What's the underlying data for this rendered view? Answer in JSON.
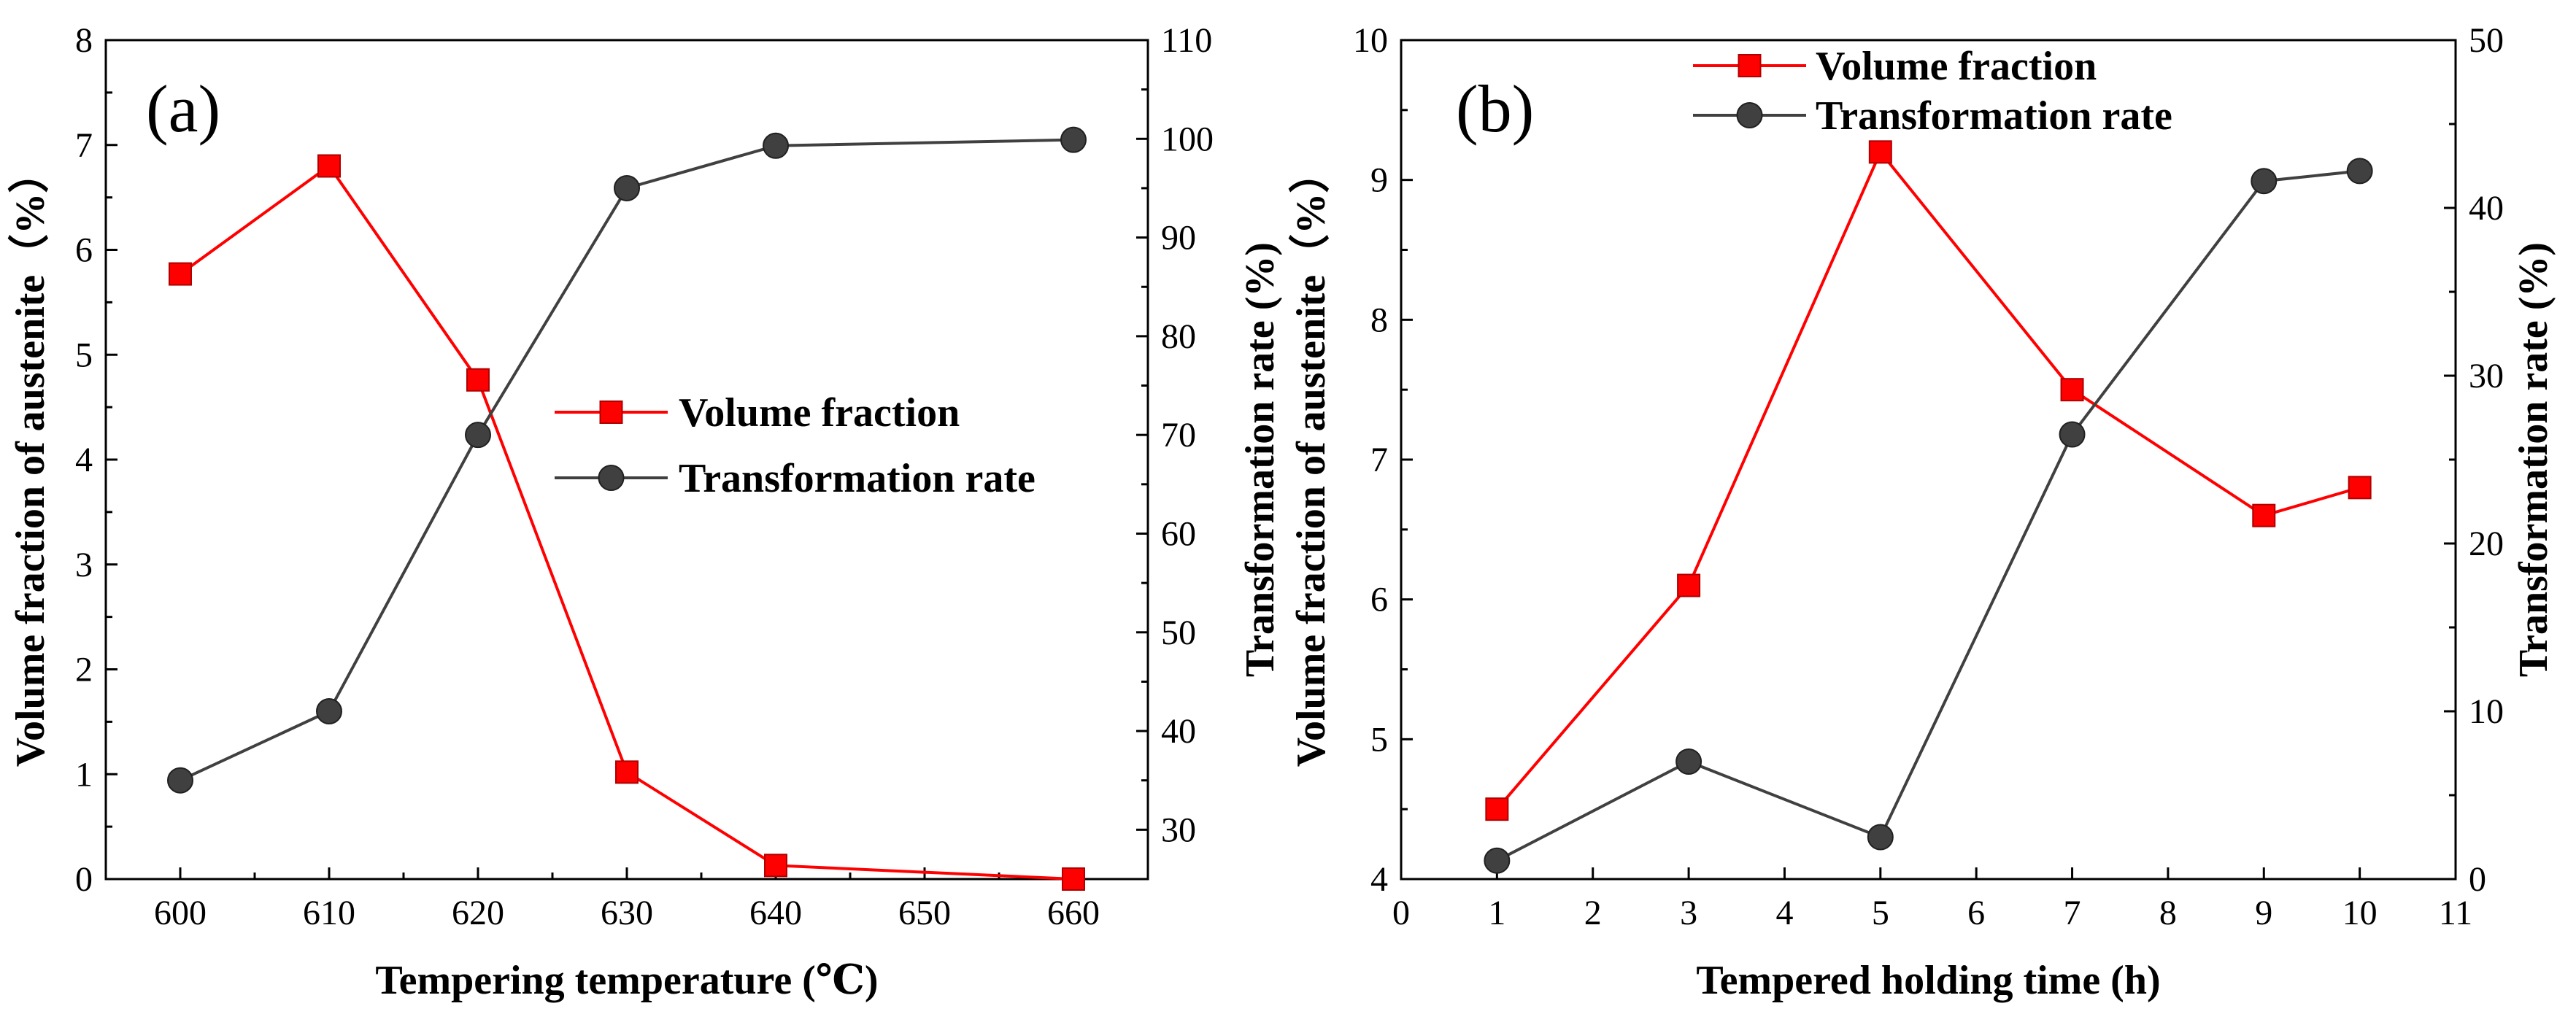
{
  "colors": {
    "volume": "#ff0000",
    "transformation": "#404040",
    "marker_edge": "#b00000",
    "axis": "#000000"
  },
  "chart_data": [
    {
      "type": "line",
      "panel_label": "(a)",
      "xlabel": "Tempering temperature (℃)",
      "ylabel_left": "Volume fraction of austenite（%）",
      "ylabel_right": "Transformation rate (%)",
      "xlim": [
        595,
        665
      ],
      "x_ticks": [
        600,
        610,
        620,
        630,
        640,
        650,
        660
      ],
      "ylim_left": [
        0,
        8
      ],
      "y_ticks_left": [
        0,
        1,
        2,
        3,
        4,
        5,
        6,
        7,
        8
      ],
      "ylim_right": [
        25,
        110
      ],
      "y_ticks_right": [
        30,
        40,
        50,
        60,
        70,
        80,
        90,
        100,
        110
      ],
      "legend_position": "center-right",
      "series": [
        {
          "name": "Volume fraction",
          "axis": "left",
          "marker": "square",
          "x": [
            600,
            610,
            620,
            630,
            640,
            660
          ],
          "values": [
            5.77,
            6.8,
            4.76,
            1.02,
            0.13,
            0.0
          ]
        },
        {
          "name": "Transformation rate",
          "axis": "right",
          "marker": "circle",
          "x": [
            600,
            610,
            620,
            630,
            640,
            660
          ],
          "values": [
            35.0,
            42.0,
            70.0,
            95.0,
            99.3,
            99.9
          ]
        }
      ]
    },
    {
      "type": "line",
      "panel_label": "(b)",
      "xlabel": "Tempered holding time (h)",
      "ylabel_left": "Volume fraction of austenite（%）",
      "ylabel_right": "Transformation rate (%)",
      "xlim": [
        0,
        11
      ],
      "x_ticks": [
        0,
        1,
        2,
        3,
        4,
        5,
        6,
        7,
        8,
        9,
        10,
        11
      ],
      "ylim_left": [
        4,
        10
      ],
      "y_ticks_left": [
        4,
        5,
        6,
        7,
        8,
        9,
        10
      ],
      "ylim_right": [
        0,
        50
      ],
      "y_ticks_right": [
        0,
        10,
        20,
        30,
        40,
        50
      ],
      "legend_position": "top-center",
      "series": [
        {
          "name": "Volume fraction",
          "axis": "left",
          "marker": "square",
          "x": [
            1,
            3,
            5,
            7,
            9,
            10
          ],
          "values": [
            4.5,
            6.1,
            9.2,
            7.5,
            6.6,
            6.8
          ]
        },
        {
          "name": "Transformation rate",
          "axis": "right",
          "marker": "circle",
          "x": [
            1,
            3,
            5,
            7,
            9,
            10
          ],
          "values": [
            1.1,
            7.0,
            2.5,
            26.5,
            41.6,
            42.2
          ]
        }
      ]
    }
  ]
}
